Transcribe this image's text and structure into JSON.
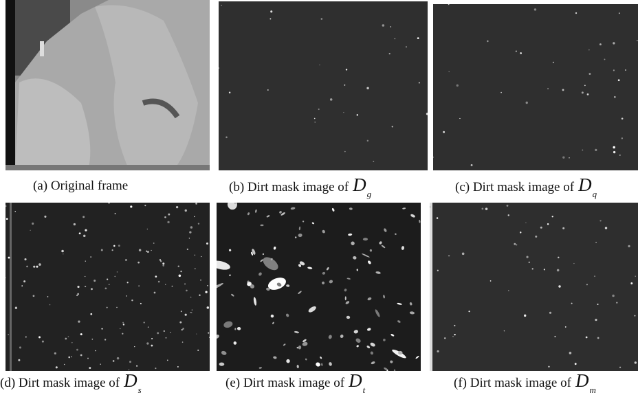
{
  "panels": [
    {
      "caption": "(a) Original frame"
    },
    {
      "caption": "(b) Dirt mask image of",
      "symbol": "D",
      "subscript": "g"
    },
    {
      "caption": "(c) Dirt mask image of",
      "symbol": "D",
      "subscript": "q"
    },
    {
      "caption": "(d) Dirt mask image of",
      "symbol": "D",
      "subscript": "s"
    },
    {
      "caption": "(e) Dirt mask image of",
      "symbol": "D",
      "subscript": "t"
    },
    {
      "caption": "(f) Dirt mask image of",
      "symbol": "D",
      "subscript": "m"
    }
  ]
}
